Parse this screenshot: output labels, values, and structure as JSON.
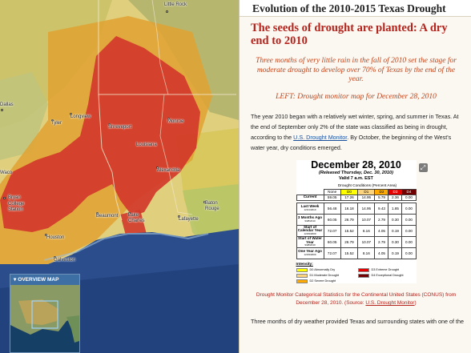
{
  "story": {
    "title": "Evolution of the 2010-2015 Texas Drought",
    "section_heading": "The seeds of drought are planted: A dry end to 2010",
    "lead": "Three months of very little rain in the fall of 2010 set the stage for moderate drought to develop over 70% of Texas by the end of the year.",
    "map_caption": "LEFT: Drought monitor map for December 28, 2010",
    "para1_before": "The year 2010 began with a relatively wet winter, spring, and summer in Texas. At the end of September only 2% of the state was classified as being in drought, according to the ",
    "para1_link": "U.S. Drought Monitor",
    "para1_after": ". By October, the beginning of the West's water year, dry conditions emerged.",
    "figure_caption_before": "Drought Monitor Categorical Statistics for the Continental United States (CONUS) from December 28, 2010. (Source: ",
    "figure_caption_link": "U.S. Drought Monitor",
    "figure_caption_after": ")",
    "para2": "Three months of dry weather provided Texas and surrounding states with one of the"
  },
  "drought_monitor": {
    "date": "December 28, 2010",
    "released": "(Released Thursday, Dec. 30, 2010)",
    "valid": "Valid 7 a.m. EST",
    "conditions_title": "Drought Conditions (Percent Area)",
    "columns": [
      "None",
      "D0",
      "D1",
      "D2",
      "D3",
      "D4"
    ],
    "rows": [
      {
        "label": "Current",
        "sub": "",
        "values": [
          "59.05",
          "17.26",
          "14.95",
          "5.79",
          "2.36",
          "0.00"
        ]
      },
      {
        "label": "Last Week",
        "sub": "12/21/2010",
        "values": [
          "56.48",
          "16.18",
          "14.95",
          "9.43",
          "1.85",
          "0.00"
        ]
      },
      {
        "label": "3 Months Ago",
        "sub": "9/28/2010",
        "values": [
          "60.05",
          "26.79",
          "10.07",
          "2.79",
          "0.30",
          "0.00"
        ]
      },
      {
        "label": "Start of Calendar Year",
        "sub": "12/29/2009",
        "values": [
          "72.07",
          "15.52",
          "8.16",
          "4.05",
          "0.19",
          "0.00"
        ]
      },
      {
        "label": "Start of Water Year",
        "sub": "9/28/2010",
        "values": [
          "60.05",
          "26.79",
          "10.07",
          "2.79",
          "0.30",
          "0.00"
        ]
      },
      {
        "label": "One Year Ago",
        "sub": "12/29/2009",
        "values": [
          "72.07",
          "15.52",
          "8.16",
          "4.05",
          "0.19",
          "0.00"
        ]
      }
    ],
    "intensity_label": "Intensity:",
    "legend": [
      {
        "label": "D0 Abnormally Dry",
        "color": "#ffff00"
      },
      {
        "label": "D3 Extreme Drought",
        "color": "#e60000"
      },
      {
        "label": "D1 Moderate Drought",
        "color": "#fcd37f"
      },
      {
        "label": "D4 Exceptional Drought",
        "color": "#730000"
      },
      {
        "label": "D2 Severe Drought",
        "color": "#ffaa00"
      }
    ]
  },
  "map": {
    "cities": [
      "Little Rock",
      "Dallas",
      "Longview",
      "Tyler",
      "Shreveport",
      "Monroe",
      "Louisiana",
      "Waco",
      "Alexandria",
      "Bryan",
      "College Station",
      "Lake Charles",
      "Lafayette",
      "Baton Rouge",
      "Houston",
      "Galveston",
      "Beaumont"
    ],
    "overview_title": "OVERVIEW MAP"
  }
}
